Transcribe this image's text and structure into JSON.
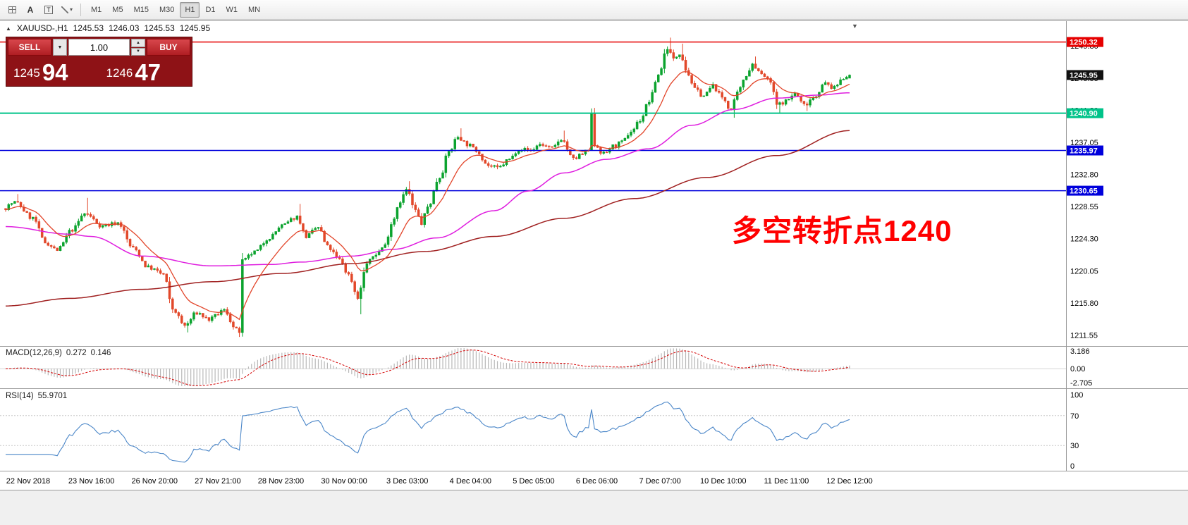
{
  "toolbar": {
    "cursor_icon_label": "A",
    "text_icon_label": "T",
    "timeframes": [
      "M1",
      "M5",
      "M15",
      "M30",
      "H1",
      "D1",
      "W1",
      "MN"
    ],
    "active_timeframe": "H1"
  },
  "chart_header": {
    "symbol": "XAUUSD-,H1",
    "open": "1245.53",
    "high": "1246.03",
    "low": "1245.53",
    "close": "1245.95"
  },
  "trade_panel": {
    "sell_label": "SELL",
    "buy_label": "BUY",
    "volume": "1.00",
    "sell_price_big": "1245",
    "sell_price_large": "94",
    "buy_price_big": "1246",
    "buy_price_large": "47"
  },
  "annotation": {
    "text": "多空转折点1240",
    "color": "#ff0000"
  },
  "indicators": {
    "macd": {
      "name": "MACD(12,26,9)",
      "value1": "0.272",
      "value2": "0.146",
      "scale": [
        {
          "label": "3.186",
          "value": 3.186
        },
        {
          "label": "0.00",
          "value": 0
        },
        {
          "label": "-2.705",
          "value": -2.705
        }
      ]
    },
    "rsi": {
      "name": "RSI(14)",
      "value": "55.9701",
      "scale": [
        {
          "label": "100",
          "value": 100
        },
        {
          "label": "70",
          "value": 70
        },
        {
          "label": "30",
          "value": 30
        },
        {
          "label": "0",
          "value": 0
        }
      ],
      "levels": [
        70,
        30
      ]
    }
  },
  "price_scale": {
    "ticks": [
      "1249.80",
      "1245.55",
      "1241.30",
      "1237.05",
      "1232.80",
      "1228.55",
      "1224.30",
      "1220.05",
      "1215.80",
      "1211.55"
    ],
    "tags": [
      {
        "label": "1250.32",
        "price": 1250.32,
        "color": "#e60000"
      },
      {
        "label": "1245.95",
        "price": 1245.95,
        "color": "#111111"
      },
      {
        "label": "1240.90",
        "price": 1240.9,
        "color": "#00c389"
      },
      {
        "label": "1235.97",
        "price": 1235.97,
        "color": "#0000dc"
      },
      {
        "label": "1230.65",
        "price": 1230.65,
        "color": "#0000dc"
      }
    ]
  },
  "time_scale": {
    "labels": [
      "22 Nov 2018",
      "23 Nov 16:00",
      "26 Nov 20:00",
      "27 Nov 21:00",
      "28 Nov 23:00",
      "30 Nov 00:00",
      "3 Dec 03:00",
      "4 Dec 04:00",
      "5 Dec 05:00",
      "6 Dec 06:00",
      "7 Dec 07:00",
      "10 Dec 10:00",
      "11 Dec 11:00",
      "12 Dec 12:00"
    ]
  },
  "chart_data": {
    "type": "candlestick",
    "symbol": "XAUUSD",
    "timeframe": "H1",
    "price_range": {
      "min": 1210.1,
      "max": 1252.8
    },
    "candles_count": 279,
    "last_candle": {
      "o": 1245.53,
      "h": 1246.03,
      "l": 1245.53,
      "c": 1245.95
    },
    "anchors": [
      [
        0,
        1228.3
      ],
      [
        4,
        1229.1
      ],
      [
        10,
        1227.0
      ],
      [
        14,
        1223.8
      ],
      [
        18,
        1222.8
      ],
      [
        23,
        1225.5
      ],
      [
        27,
        1227.6
      ],
      [
        33,
        1226.0
      ],
      [
        38,
        1226.4
      ],
      [
        43,
        1223.0
      ],
      [
        48,
        1220.5
      ],
      [
        53,
        1219.6
      ],
      [
        56,
        1215.0
      ],
      [
        60,
        1212.8
      ],
      [
        64,
        1214.5
      ],
      [
        68,
        1213.6
      ],
      [
        73,
        1214.8
      ],
      [
        77,
        1212.2
      ],
      [
        78,
        1212.0
      ],
      [
        79,
        1221.3
      ],
      [
        83,
        1222.5
      ],
      [
        88,
        1224.5
      ],
      [
        92,
        1226.0
      ],
      [
        97,
        1227.2
      ],
      [
        100,
        1224.6
      ],
      [
        104,
        1225.8
      ],
      [
        107,
        1223.2
      ],
      [
        111,
        1221.5
      ],
      [
        114,
        1219.5
      ],
      [
        117,
        1216.6
      ],
      [
        120,
        1221.0
      ],
      [
        123,
        1222.3
      ],
      [
        126,
        1223.4
      ],
      [
        128,
        1226.3
      ],
      [
        131,
        1229.3
      ],
      [
        133,
        1230.8
      ],
      [
        136,
        1228.0
      ],
      [
        138,
        1226.3
      ],
      [
        140,
        1228.5
      ],
      [
        144,
        1232.5
      ],
      [
        147,
        1235.8
      ],
      [
        150,
        1237.8
      ],
      [
        153,
        1236.8
      ],
      [
        156,
        1236.0
      ],
      [
        160,
        1234.0
      ],
      [
        163,
        1233.6
      ],
      [
        167,
        1234.8
      ],
      [
        170,
        1236.2
      ],
      [
        174,
        1236.0
      ],
      [
        177,
        1236.8
      ],
      [
        181,
        1236.2
      ],
      [
        184,
        1237.5
      ],
      [
        188,
        1234.8
      ],
      [
        191,
        1235.5
      ],
      [
        193,
        1236.0
      ],
      [
        194,
        1240.6
      ],
      [
        195,
        1236.8
      ],
      [
        198,
        1235.5
      ],
      [
        201,
        1236.5
      ],
      [
        204,
        1237.0
      ],
      [
        207,
        1238.5
      ],
      [
        210,
        1240.0
      ],
      [
        213,
        1242.5
      ],
      [
        216,
        1246.0
      ],
      [
        219,
        1249.6
      ],
      [
        221,
        1248.0
      ],
      [
        223,
        1248.9
      ],
      [
        226,
        1246.0
      ],
      [
        228,
        1244.0
      ],
      [
        231,
        1243.2
      ],
      [
        234,
        1244.5
      ],
      [
        237,
        1243.0
      ],
      [
        240,
        1241.3
      ],
      [
        242,
        1243.5
      ],
      [
        245,
        1246.0
      ],
      [
        247,
        1247.4
      ],
      [
        250,
        1246.0
      ],
      [
        253,
        1245.0
      ],
      [
        255,
        1242.0
      ],
      [
        258,
        1242.5
      ],
      [
        261,
        1243.5
      ],
      [
        264,
        1242.0
      ],
      [
        267,
        1243.0
      ],
      [
        271,
        1244.8
      ],
      [
        274,
        1244.2
      ],
      [
        276,
        1245.3
      ],
      [
        278,
        1245.95
      ]
    ],
    "wick_events": [
      {
        "i": 4,
        "h": 1230.2
      },
      {
        "i": 27,
        "h": 1229.7
      },
      {
        "i": 60,
        "l": 1211.9
      },
      {
        "i": 77,
        "l": 1211.3
      },
      {
        "i": 97,
        "h": 1228.9
      },
      {
        "i": 117,
        "l": 1214.3
      },
      {
        "i": 133,
        "h": 1231.9
      },
      {
        "i": 150,
        "h": 1238.9
      },
      {
        "i": 184,
        "h": 1238.6
      },
      {
        "i": 194,
        "h": 1241.6
      },
      {
        "i": 219,
        "h": 1250.9
      },
      {
        "i": 223,
        "h": 1250.1
      },
      {
        "i": 240,
        "l": 1240.3
      },
      {
        "i": 247,
        "h": 1248.4
      },
      {
        "i": 255,
        "l": 1240.9
      },
      {
        "i": 264,
        "l": 1241.2
      }
    ],
    "hlines": [
      {
        "price": 1250.32,
        "color": "#e60000",
        "width": 1.5
      },
      {
        "price": 1240.9,
        "color": "#00c389",
        "width": 2
      },
      {
        "price": 1235.97,
        "color": "#0000dc",
        "width": 1.5
      },
      {
        "price": 1230.65,
        "color": "#0000dc",
        "width": 1.5
      }
    ],
    "moving_averages": {
      "fast": {
        "type": "ema",
        "period": 13,
        "color": "#e2452a",
        "width": 1.3
      },
      "mid": {
        "color": "#df1edf",
        "width": 1.5,
        "anchors": [
          [
            0,
            1225.9
          ],
          [
            21,
            1224.9
          ],
          [
            28,
            1224.6
          ],
          [
            45,
            1222.0
          ],
          [
            68,
            1220.7
          ],
          [
            88,
            1220.9
          ],
          [
            97,
            1221.2
          ],
          [
            114,
            1222.0
          ],
          [
            128,
            1222.9
          ],
          [
            142,
            1224.4
          ],
          [
            161,
            1228.0
          ],
          [
            172,
            1230.6
          ],
          [
            184,
            1233.0
          ],
          [
            198,
            1234.8
          ],
          [
            212,
            1236.2
          ],
          [
            226,
            1239.3
          ],
          [
            240,
            1241.4
          ],
          [
            254,
            1242.9
          ],
          [
            268,
            1243.3
          ],
          [
            278,
            1243.6
          ]
        ]
      },
      "slow": {
        "color": "#a02020",
        "width": 1.5,
        "anchors": [
          [
            0,
            1215.4
          ],
          [
            21,
            1216.4
          ],
          [
            45,
            1217.6
          ],
          [
            68,
            1218.6
          ],
          [
            91,
            1219.7
          ],
          [
            114,
            1221.0
          ],
          [
            138,
            1222.6
          ],
          [
            161,
            1224.6
          ],
          [
            184,
            1227.0
          ],
          [
            207,
            1229.6
          ],
          [
            231,
            1232.4
          ],
          [
            254,
            1235.3
          ],
          [
            278,
            1238.6
          ]
        ]
      }
    },
    "macd": {
      "fast": 12,
      "slow": 26,
      "signal": 9,
      "hist_color": "#b8b8b8",
      "signal_color": "#d40000"
    },
    "rsi": {
      "period": 14,
      "color": "#4a86c8"
    },
    "candle_colors": {
      "bull": "#0ba32e",
      "bear": "#e2482a"
    }
  }
}
